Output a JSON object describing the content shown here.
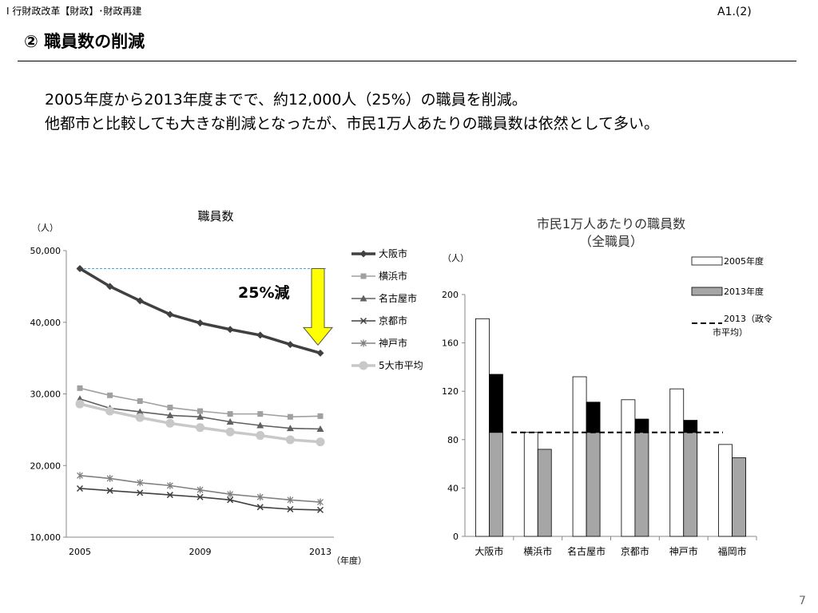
{
  "header": {
    "breadcrumb": "Ⅰ 行財政改革【財政】･財政再建",
    "page_ref": "A1.(2)",
    "title": "② 職員数の削減"
  },
  "summary": {
    "line1": "2005年度から2013年度までで、約12,000人（25%）の職員を削減。",
    "line2": "他都市と比較しても大きな削減となったが、市民1万人あたりの職員数は依然として多い。"
  },
  "page_number": "7",
  "chart_data": [
    {
      "type": "line",
      "title": "職員数",
      "ylabel": "（人）",
      "xlabel": "（年度）",
      "x": [
        2005,
        2006,
        2007,
        2008,
        2009,
        2010,
        2011,
        2012,
        2013
      ],
      "x_tick_labels": [
        "2005",
        "2009",
        "2013"
      ],
      "x_tick_values": [
        2005,
        2009,
        2013
      ],
      "ylim": [
        10000,
        50000
      ],
      "y_tick_labels": [
        "10,000",
        "20,000",
        "30,000",
        "40,000",
        "50,000"
      ],
      "y_tick_values": [
        10000,
        20000,
        30000,
        40000,
        50000
      ],
      "legend_position": "right",
      "series": [
        {
          "name": "大阪市",
          "color": "#404040",
          "marker": "diamond",
          "values": [
            47500,
            45000,
            43000,
            41100,
            39900,
            39000,
            38200,
            36900,
            35700
          ]
        },
        {
          "name": "横浜市",
          "color": "#a0a0a0",
          "marker": "square",
          "values": [
            30800,
            29800,
            29000,
            28100,
            27600,
            27200,
            27200,
            26800,
            26900
          ]
        },
        {
          "name": "名古屋市",
          "color": "#606060",
          "marker": "triangle",
          "values": [
            29300,
            28000,
            27500,
            27000,
            26800,
            26100,
            25600,
            25200,
            25100
          ]
        },
        {
          "name": "京都市",
          "color": "#404040",
          "marker": "x",
          "values": [
            16800,
            16500,
            16200,
            15900,
            15600,
            15200,
            14200,
            13900,
            13800
          ]
        },
        {
          "name": "神戸市",
          "color": "#808080",
          "marker": "star",
          "values": [
            18600,
            18200,
            17600,
            17200,
            16600,
            16000,
            15600,
            15200,
            14900
          ]
        },
        {
          "name": "5大市平均",
          "color": "#c8c8c8",
          "marker": "circle",
          "values": [
            28600,
            27600,
            26700,
            25900,
            25300,
            24700,
            24200,
            23600,
            23300
          ]
        }
      ],
      "annotation": {
        "label": "25%減",
        "from": 47500,
        "to": 35700,
        "arrow_color": "#ffff00"
      }
    },
    {
      "type": "bar",
      "title_line1": "市民1万人あたりの職員数",
      "title_line2": "（全職員）",
      "ylabel": "（人）",
      "ylim": [
        0,
        200
      ],
      "y_tick_values": [
        0,
        40,
        80,
        120,
        160,
        200
      ],
      "y_tick_labels": [
        "0",
        "40",
        "80",
        "120",
        "160",
        "200"
      ],
      "categories": [
        "大阪市",
        "横浜市",
        "名古屋市",
        "京都市",
        "神戸市",
        "福岡市"
      ],
      "series": [
        {
          "name": "2005年度",
          "color": "#ffffff",
          "values": [
            180,
            86,
            132,
            113,
            122,
            76
          ]
        },
        {
          "name": "2013年度",
          "color": "#a6a6a6",
          "above_average_color": "#000000",
          "values": [
            134,
            72,
            111,
            97,
            96,
            65
          ]
        }
      ],
      "reference_line": {
        "name_line1": "2013（政令",
        "name_line2": "市平均）",
        "value": 86
      },
      "legend_position": "top-right"
    }
  ]
}
